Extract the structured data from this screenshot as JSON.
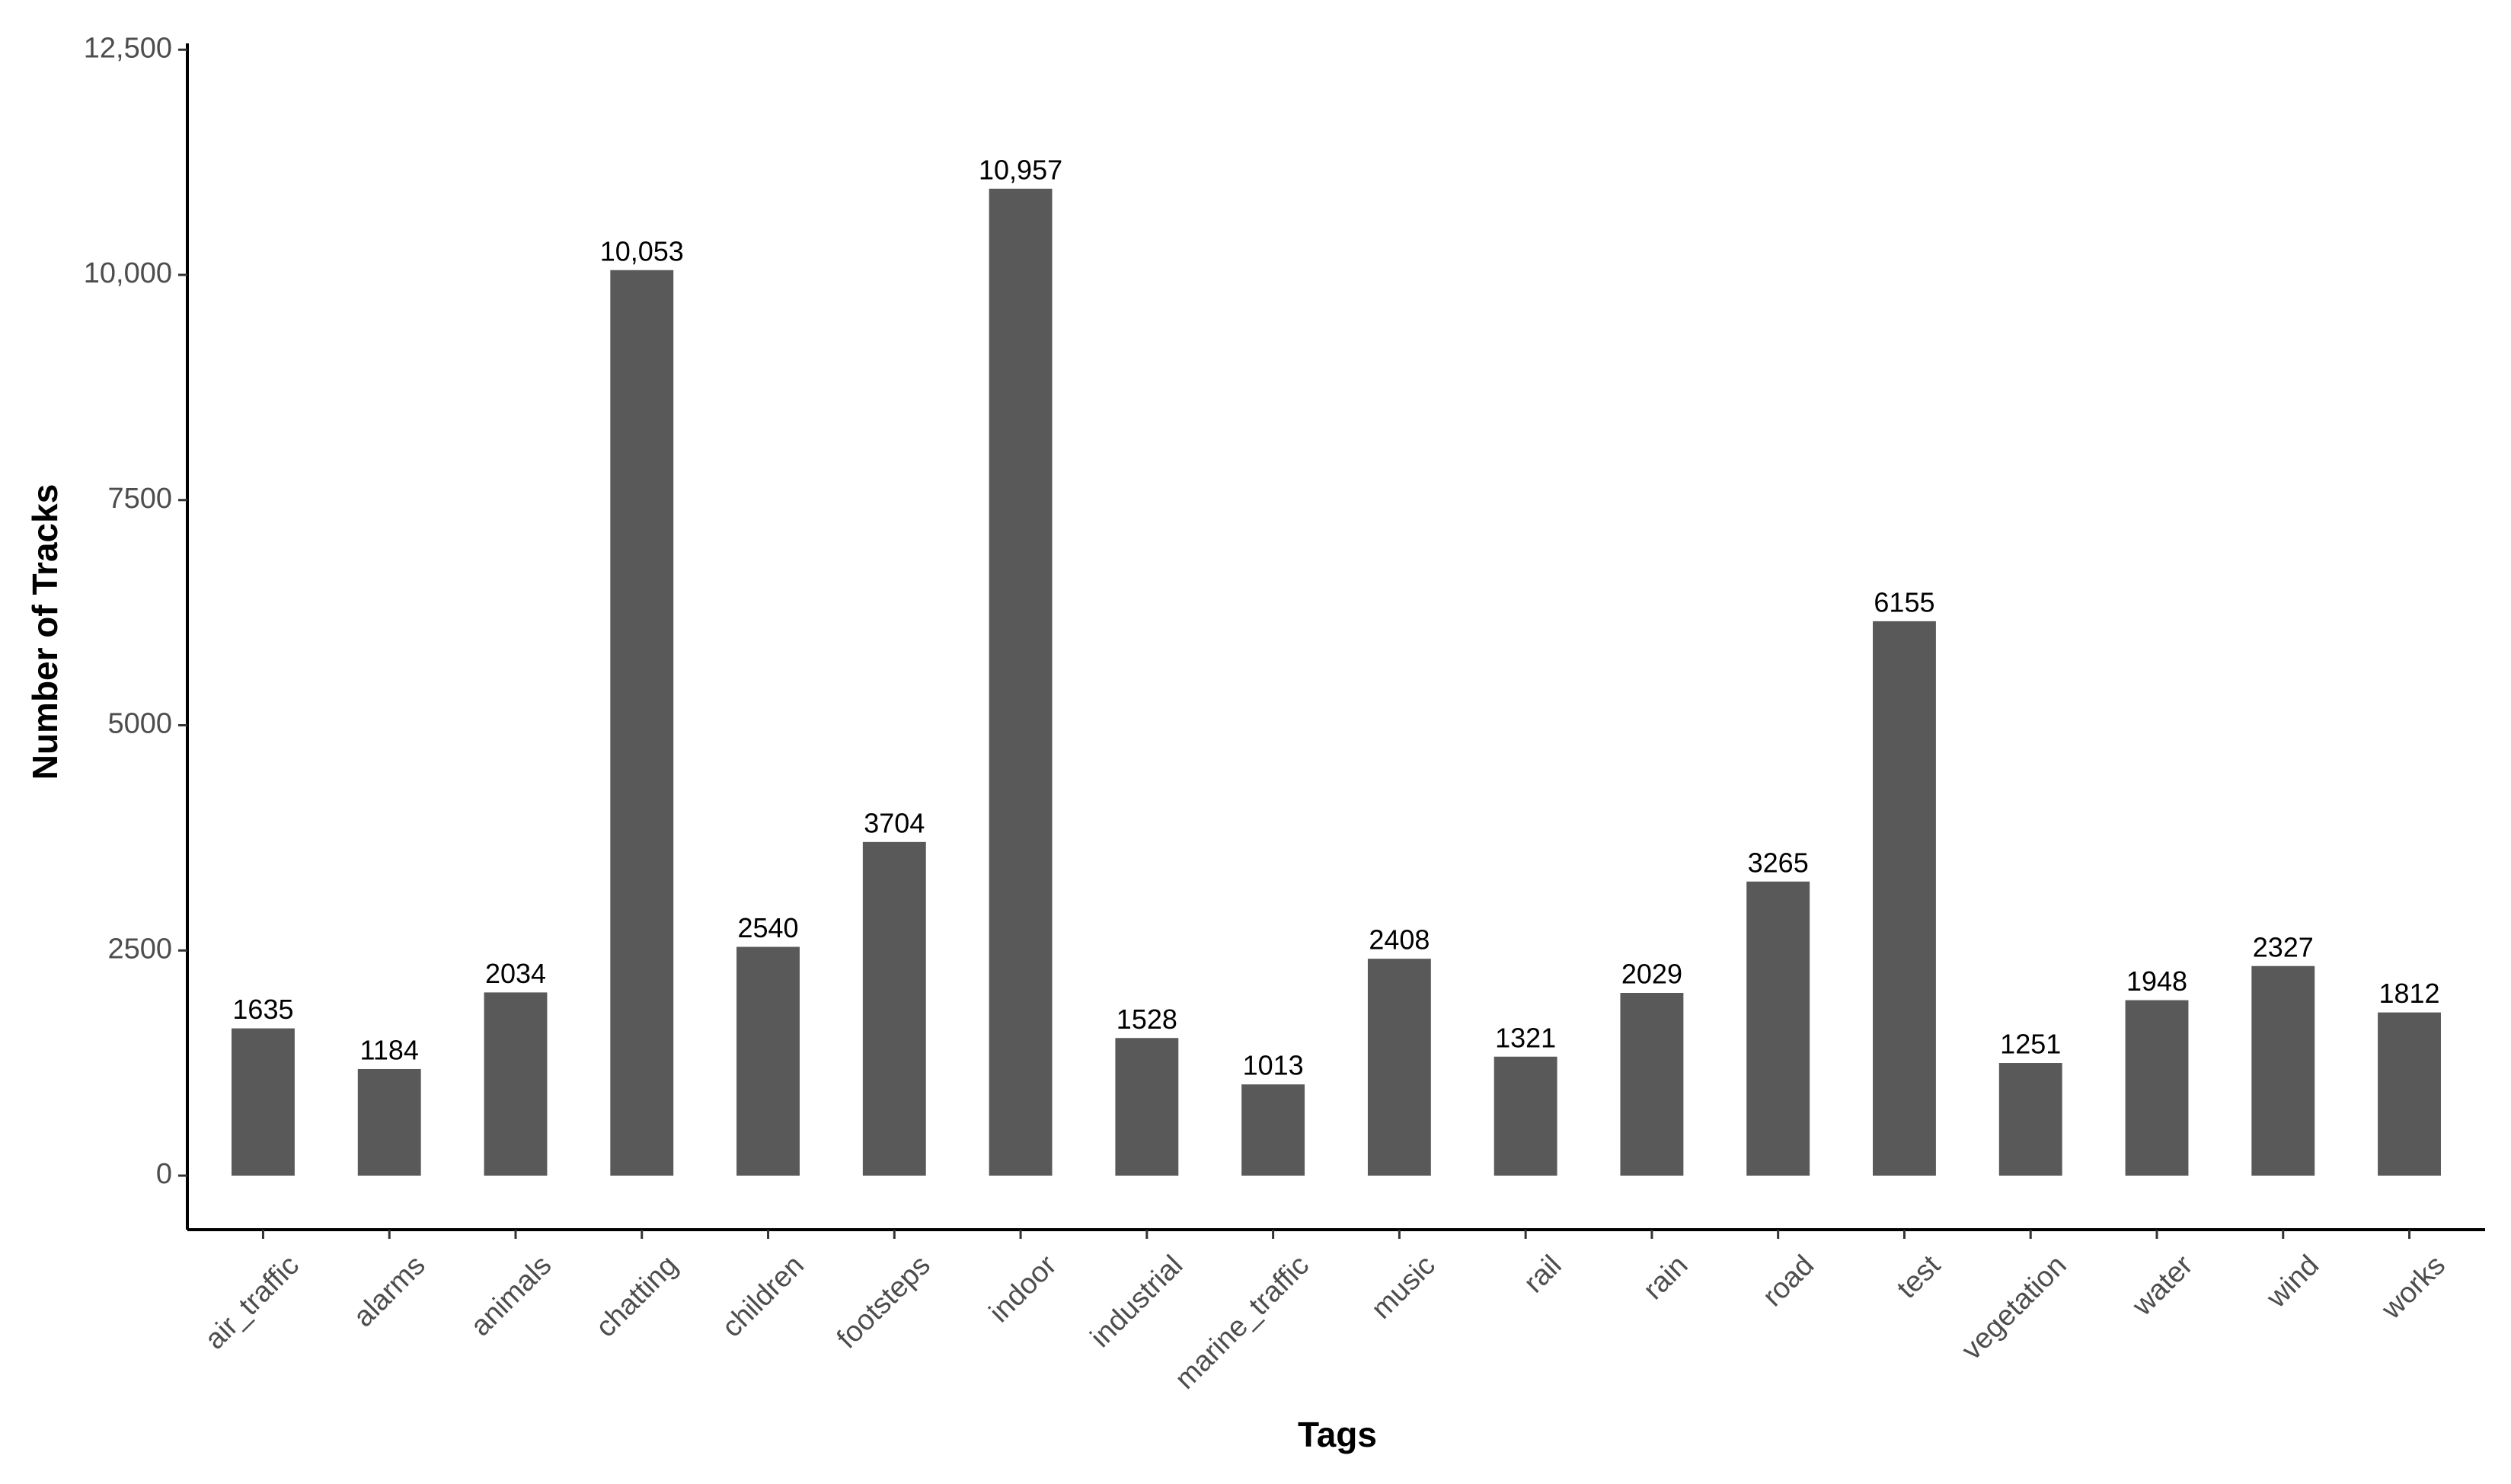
{
  "chart_data": {
    "type": "bar",
    "x_label": "Tags",
    "y_label": "Number of Tracks",
    "categories": [
      "air_traffic",
      "alarms",
      "animals",
      "chatting",
      "children",
      "footsteps",
      "indoor",
      "industrial",
      "marine_traffic",
      "music",
      "rail",
      "rain",
      "road",
      "test",
      "vegetation",
      "water",
      "wind",
      "works"
    ],
    "values": [
      1635,
      1184,
      2034,
      10053,
      2540,
      3704,
      10957,
      1528,
      1013,
      2408,
      1321,
      2029,
      3265,
      6155,
      1251,
      1948,
      2327,
      1812
    ],
    "value_labels": [
      "1635",
      "1184",
      "2034",
      "10,053",
      "2540",
      "3704",
      "10,957",
      "1528",
      "1013",
      "2408",
      "1321",
      "2029",
      "3265",
      "6155",
      "1251",
      "1948",
      "2327",
      "1812"
    ],
    "color": "#595959",
    "ylim": [
      -600,
      12570
    ],
    "yticks": [
      0,
      2500,
      5000,
      7500,
      {
        "value": 10000,
        "label": "10,000"
      },
      {
        "value": 12500,
        "label": "12,500"
      }
    ],
    "grid": false
  }
}
